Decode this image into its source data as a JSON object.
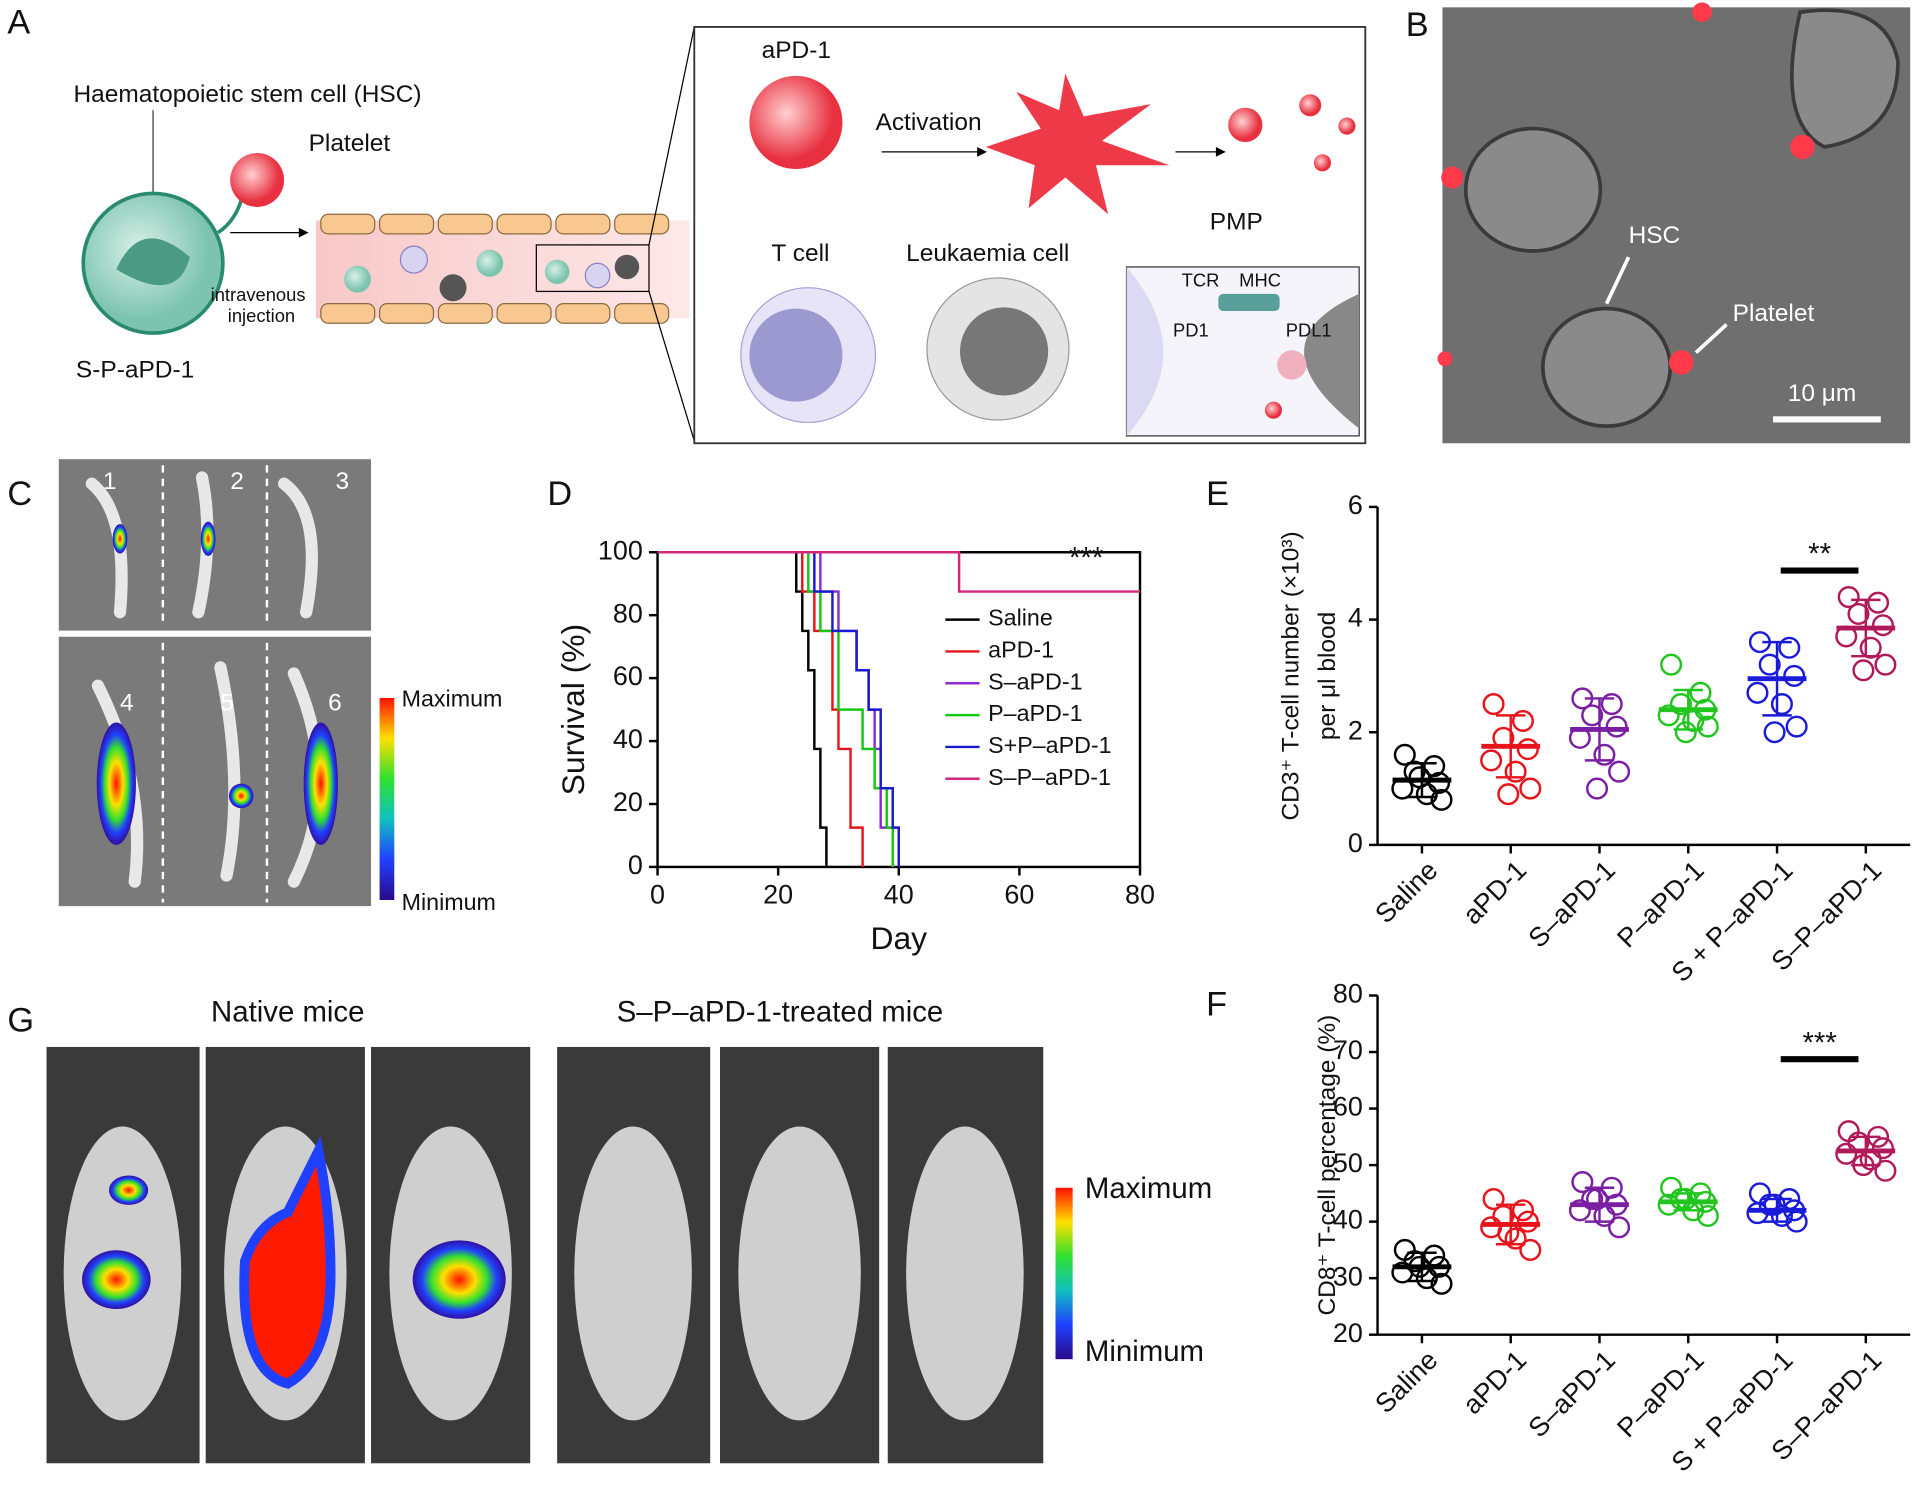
{
  "panel_labels": [
    "A",
    "B",
    "C",
    "G"
  ],
  "diagram": {
    "hsc": "Haematopoietic stem cell (HSC)",
    "platelet": "Platelet",
    "injection": [
      "intravenous",
      "injection"
    ],
    "construct": "S-P-aPD-1",
    "antibody": "aPD-1",
    "activation": "Activation",
    "pmp": "PMP",
    "t_cell": "T cell",
    "leukaemia_cell": "Leukaemia cell",
    "tcr": "TCR",
    "mhc": "MHC",
    "pd1": "PD1",
    "pdl1": "PDL1"
  },
  "micrograph": {
    "hsc": "HSC",
    "platelet": "Platelet",
    "scale_bar": "10 μm"
  },
  "bone_imaging": {
    "numbers": [
      "1",
      "2",
      "3",
      "4",
      "5",
      "6"
    ],
    "maximum": "Maximum",
    "minimum": "Minimum"
  },
  "mouse_imaging": {
    "groups": [
      "Native mice",
      "S–P–aPD-1-treated mice"
    ],
    "maximum": "Maximum",
    "minimum": "Minimum"
  },
  "chart_data": [
    {
      "type": "line",
      "step": true,
      "panel": "D",
      "xlabel": "Day",
      "ylabel": "Survival (%)",
      "annotation": "***",
      "xlim": [
        0,
        80
      ],
      "xticks": [
        0,
        20,
        40,
        60,
        80
      ],
      "ylim": [
        0,
        100
      ],
      "yticks": [
        0,
        20,
        40,
        60,
        80,
        100
      ],
      "series": [
        {
          "name": "Saline",
          "color": "#000000",
          "x": [
            0,
            23,
            24,
            25,
            26,
            27,
            28
          ],
          "values": [
            100,
            87.5,
            75,
            62.5,
            37.5,
            12.5,
            0
          ]
        },
        {
          "name": "aPD-1",
          "color": "#e8141c",
          "x": [
            0,
            24,
            26,
            29,
            30,
            32,
            34
          ],
          "values": [
            100,
            87.5,
            75,
            50,
            37.5,
            12.5,
            0
          ]
        },
        {
          "name": "S–aPD-1",
          "color": "#8e2bd0",
          "x": [
            0,
            27,
            30,
            33,
            35,
            36,
            37,
            40
          ],
          "values": [
            100,
            87.5,
            75,
            62.5,
            50,
            37.5,
            12.5,
            0
          ]
        },
        {
          "name": "P–aPD-1",
          "color": "#14c814",
          "x": [
            0,
            25,
            27,
            30,
            34,
            36,
            38,
            39
          ],
          "values": [
            100,
            87.5,
            75,
            50,
            37.5,
            25,
            12.5,
            0
          ]
        },
        {
          "name": "S+P–aPD-1",
          "color": "#1a1ad0",
          "x": [
            0,
            26,
            29,
            33,
            35,
            37,
            39,
            40
          ],
          "values": [
            100,
            87.5,
            75,
            62.5,
            50,
            25,
            12.5,
            0
          ]
        },
        {
          "name": "S–P–aPD-1",
          "color": "#d0287a",
          "x": [
            0,
            50,
            80
          ],
          "values": [
            100,
            87.5,
            87.5
          ]
        }
      ]
    },
    {
      "type": "dotplot",
      "panel": "E",
      "ylabel": [
        "CD3⁺ T-cell number (×10³)",
        "per μl blood"
      ],
      "annotation": "**",
      "ylim": [
        0,
        6
      ],
      "yticks": [
        0,
        2,
        4,
        6
      ],
      "categories": [
        "Saline",
        "aPD-1",
        "S–aPD-1",
        "P–aPD-1",
        "S + P–aPD-1",
        "S–P–aPD-1"
      ],
      "colors": [
        "#000000",
        "#e8141c",
        "#7b1fa2",
        "#22c51e",
        "#1a1adb",
        "#b0195a"
      ],
      "points": [
        [
          1.6,
          1.4,
          1.3,
          1.1,
          1.0,
          0.9,
          0.8,
          1.2
        ],
        [
          2.5,
          2.2,
          1.9,
          1.7,
          1.5,
          1.3,
          1.0,
          0.9
        ],
        [
          2.6,
          2.5,
          2.3,
          2.1,
          1.9,
          1.6,
          1.3,
          1.0
        ],
        [
          3.2,
          2.7,
          2.5,
          2.4,
          2.3,
          2.2,
          2.1,
          2.0
        ],
        [
          3.6,
          3.5,
          3.2,
          3.0,
          2.7,
          2.5,
          2.1,
          2.0
        ],
        [
          4.4,
          4.3,
          4.1,
          3.9,
          3.7,
          3.5,
          3.2,
          3.1
        ]
      ],
      "means": [
        1.15,
        1.75,
        2.05,
        2.4,
        2.95,
        3.85
      ],
      "sd": [
        0.3,
        0.55,
        0.55,
        0.35,
        0.65,
        0.5
      ]
    },
    {
      "type": "dotplot",
      "panel": "F",
      "ylabel": [
        "CD8⁺ T-cell percentage (%)"
      ],
      "annotation": "***",
      "ylim": [
        20,
        80
      ],
      "yticks": [
        20,
        30,
        40,
        50,
        60,
        70,
        80
      ],
      "categories": [
        "Saline",
        "aPD-1",
        "S–aPD-1",
        "P–aPD-1",
        "S + P–aPD-1",
        "S–P–aPD-1"
      ],
      "colors": [
        "#000000",
        "#e8141c",
        "#7b1fa2",
        "#22c51e",
        "#1a1adb",
        "#b0195a"
      ],
      "points": [
        [
          35,
          34,
          33,
          32,
          31,
          30,
          29,
          32
        ],
        [
          44,
          42,
          41,
          40,
          39,
          37,
          35,
          38
        ],
        [
          47,
          46,
          44,
          43,
          42,
          41,
          39,
          44
        ],
        [
          46,
          45,
          44,
          43.5,
          43,
          42,
          41,
          44
        ],
        [
          45,
          44,
          43,
          42,
          41.5,
          41,
          40,
          43
        ],
        [
          56,
          55,
          54,
          53,
          52,
          51,
          49,
          50
        ]
      ],
      "means": [
        32,
        39.5,
        43,
        43.5,
        42,
        52.5
      ],
      "sd": [
        2.5,
        3.5,
        3,
        1.5,
        2,
        2.5
      ]
    }
  ]
}
